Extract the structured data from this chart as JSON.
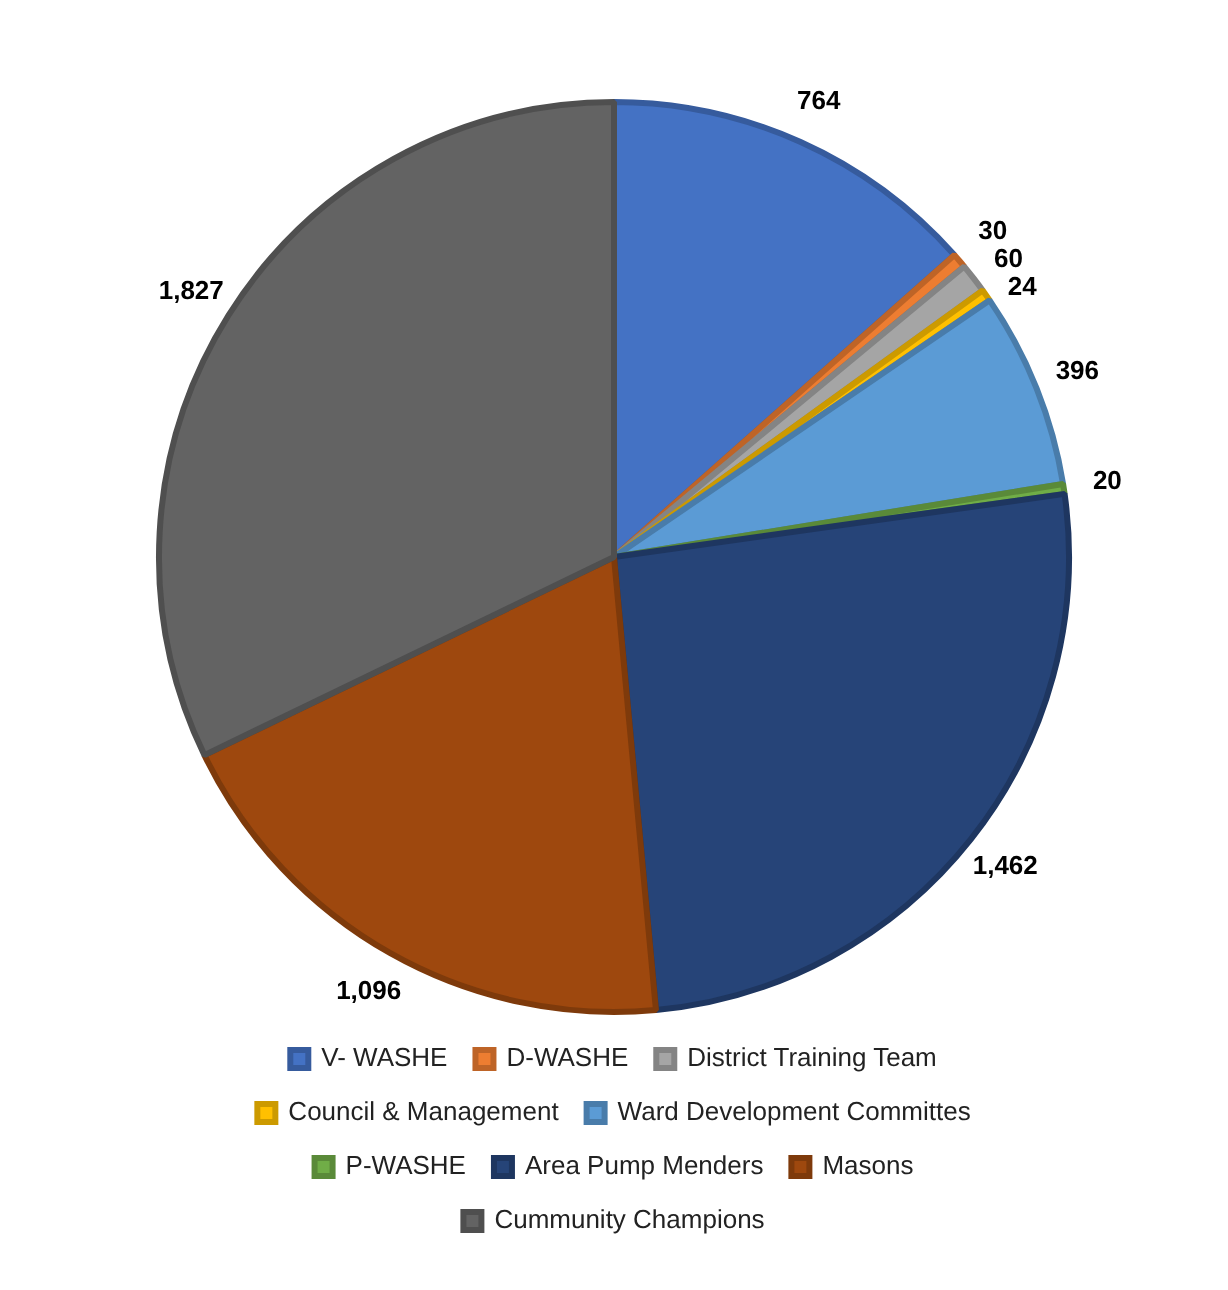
{
  "chart_data": {
    "type": "pie",
    "categories": [
      "V- WASHE",
      "D-WASHE",
      "District Training Team",
      "Council & Management",
      "Ward Development Committes",
      "P-WASHE",
      "Area Pump Menders",
      "Masons",
      "Cummunity Champions"
    ],
    "values": [
      764,
      30,
      60,
      24,
      396,
      20,
      1462,
      1096,
      1827
    ],
    "value_labels": [
      "764",
      "30",
      "60",
      "24",
      "396",
      "20",
      "1,462",
      "1,096",
      "1,827"
    ],
    "colors": [
      "#4472c4",
      "#ed7d31",
      "#a5a5a5",
      "#ffc000",
      "#5b9bd5",
      "#70ad47",
      "#264478",
      "#9e480e",
      "#636363"
    ],
    "legend": "bottom"
  }
}
